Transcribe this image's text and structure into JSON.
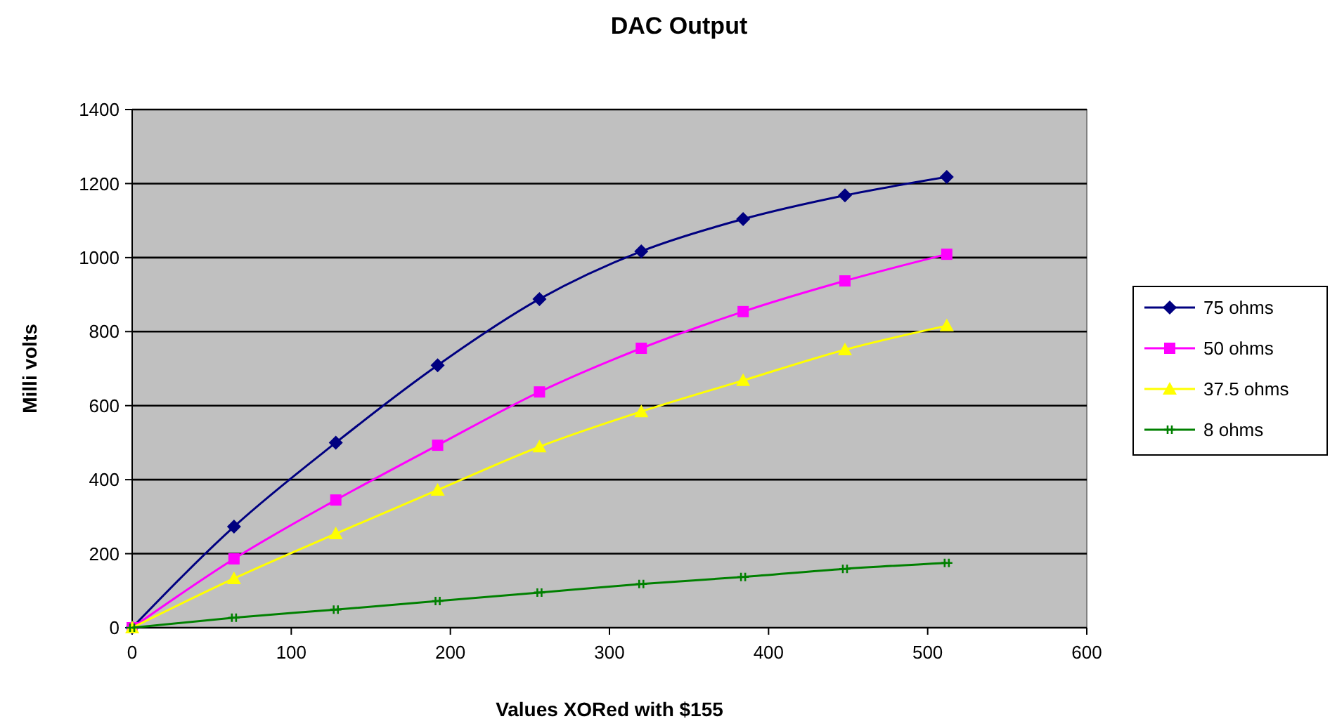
{
  "chart_data": {
    "type": "line",
    "title": "DAC Output",
    "xlabel": "Values XORed with $155",
    "ylabel": "Milli volts",
    "x": [
      0,
      64,
      128,
      192,
      256,
      320,
      384,
      448,
      512
    ],
    "xlim": [
      0,
      600
    ],
    "xticks": [
      0,
      100,
      200,
      300,
      400,
      500,
      600
    ],
    "ylim": [
      0,
      1400
    ],
    "yticks": [
      0,
      200,
      400,
      600,
      800,
      1000,
      1200,
      1400
    ],
    "grid": "y",
    "legend": "right",
    "series": [
      {
        "name": "75 ohms",
        "color": "#000080",
        "marker": "diamond",
        "values": [
          0,
          273,
          500,
          709,
          888,
          1017,
          1104,
          1168,
          1218
        ]
      },
      {
        "name": "50 ohms",
        "color": "#ff00ff",
        "marker": "square",
        "values": [
          0,
          186,
          345,
          493,
          637,
          755,
          854,
          937,
          1009
        ]
      },
      {
        "name": "37.5 ohms",
        "color": "#ffff00",
        "marker": "triangle",
        "values": [
          0,
          133,
          254,
          372,
          489,
          584,
          668,
          751,
          816
        ]
      },
      {
        "name": "8 ohms",
        "color": "#008000",
        "marker": "cross",
        "values": [
          0,
          27,
          49,
          72,
          95,
          118,
          137,
          159,
          175
        ]
      }
    ]
  }
}
